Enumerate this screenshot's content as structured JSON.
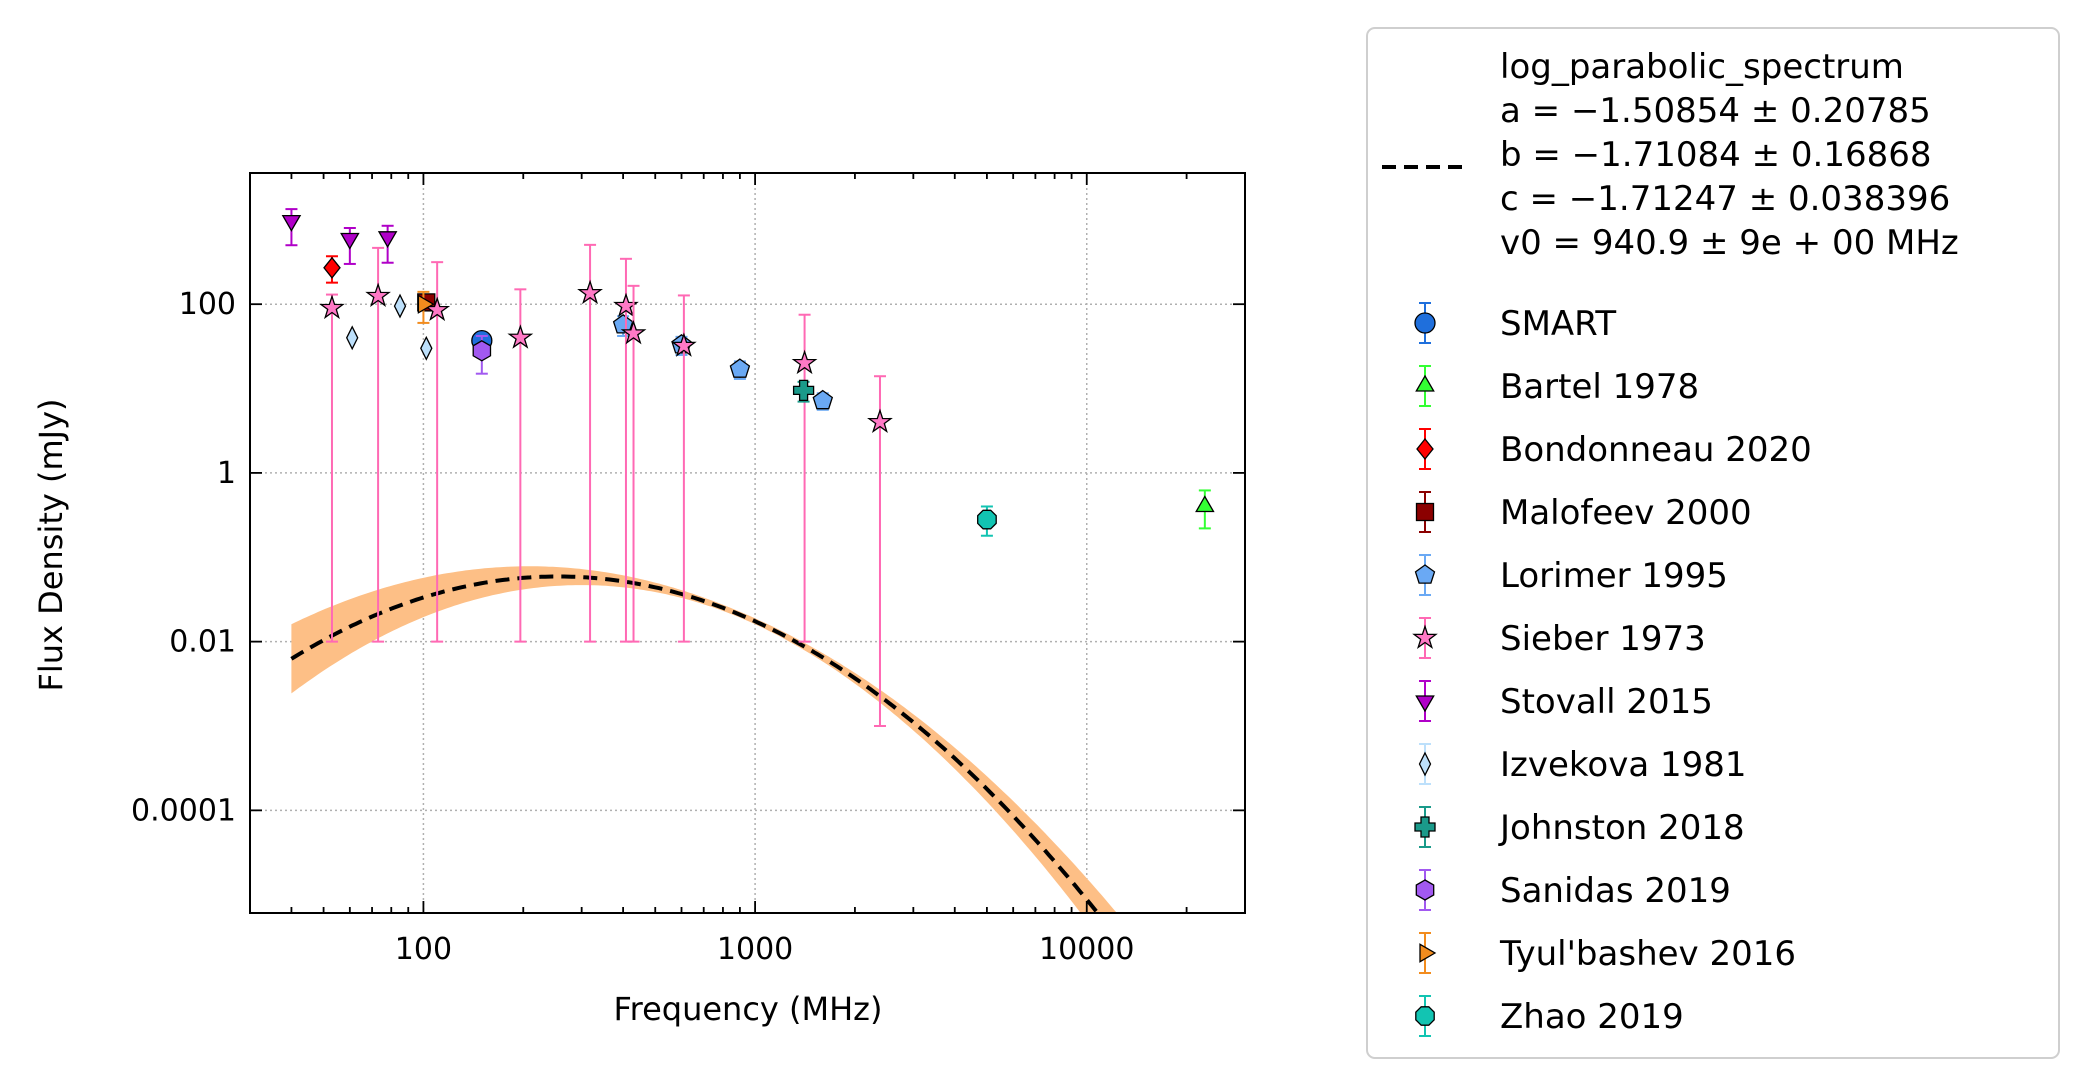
{
  "chart_data": {
    "type": "scatter",
    "xlabel": "Frequency (MHz)",
    "ylabel": "Flux Density (mJy)",
    "x_scale": "log",
    "y_scale": "log",
    "xlim": [
      30,
      30000
    ],
    "ylim": [
      6.07e-06,
      3590
    ],
    "x_ticks": [
      100,
      1000,
      10000
    ],
    "x_tick_labels": [
      "100",
      "1000",
      "10000"
    ],
    "y_ticks": [
      0.0001,
      0.01,
      1,
      100
    ],
    "y_tick_labels": [
      "0.0001",
      "0.01",
      "1",
      "100"
    ],
    "grid": true,
    "legend_position": "outside-right",
    "fit": {
      "name": "log_parabolic_spectrum",
      "lines": [
        "log_parabolic_spectrum",
        "a = −1.50854 ± 0.20785",
        "b = −1.71084 ± 0.16868",
        "c = −1.71247 ± 0.038396",
        "v0 = 940.9 ± 9e + 00 MHz"
      ],
      "a": -1.50854,
      "b": -1.71084,
      "c": -1.71247,
      "v0": 940.9,
      "x_range": [
        40,
        22000
      ],
      "band_color": "#fdbf86",
      "line_color": "#000000"
    },
    "series": [
      {
        "name": "SMART",
        "marker": "circle",
        "color": "#1f6fdc",
        "ecolor": "#1f6fdc",
        "points": [
          {
            "x": 150,
            "y": 37,
            "yerr": [
              8,
              8
            ]
          }
        ]
      },
      {
        "name": "Bartel 1978",
        "marker": "triangle-up",
        "color": "#33ff33",
        "ecolor": "#33ff33",
        "points": [
          {
            "x": 22700,
            "y": 0.4,
            "yerr": [
              0.18,
              0.22
            ]
          }
        ]
      },
      {
        "name": "Bondonneau 2020",
        "marker": "diamond",
        "color": "#ff0000",
        "ecolor": "#ff0000",
        "points": [
          {
            "x": 53,
            "y": 270,
            "yerr": [
              90,
              100
            ]
          }
        ]
      },
      {
        "name": "Malofeev 2000",
        "marker": "square",
        "color": "#8b0000",
        "ecolor": "#8b0000",
        "points": [
          {
            "x": 102,
            "y": 105,
            "yerr": [
              15,
              15
            ]
          }
        ]
      },
      {
        "name": "Lorimer 1995",
        "marker": "pentagon",
        "color": "#6aa9f4",
        "ecolor": "#6aa9f4",
        "points": [
          {
            "x": 400,
            "y": 57,
            "yerr": [
              15,
              15
            ]
          },
          {
            "x": 600,
            "y": 33,
            "yerr": [
              8,
              8
            ]
          },
          {
            "x": 900,
            "y": 17,
            "yerr": [
              4,
              4
            ]
          },
          {
            "x": 1600,
            "y": 7.2,
            "yerr": [
              1.6,
              1.6
            ]
          }
        ]
      },
      {
        "name": "Sieber 1973",
        "marker": "star",
        "color": "#ff79c6",
        "ecolor": "#ff69b4",
        "points": [
          {
            "x": 53,
            "y": 90,
            "yerr": [
              89.99,
              40
            ]
          },
          {
            "x": 73,
            "y": 125,
            "yerr": [
              124.99,
              340
            ]
          },
          {
            "x": 110,
            "y": 85,
            "yerr": [
              84.99,
              230
            ]
          },
          {
            "x": 196,
            "y": 40,
            "yerr": [
              39.99,
              110
            ]
          },
          {
            "x": 318,
            "y": 135,
            "yerr": [
              134.99,
              370
            ]
          },
          {
            "x": 408,
            "y": 95,
            "yerr": [
              94.99,
              250
            ]
          },
          {
            "x": 430,
            "y": 45,
            "yerr": [
              44.99,
              120
            ]
          },
          {
            "x": 610,
            "y": 32,
            "yerr": [
              31.99,
              95
            ]
          },
          {
            "x": 1410,
            "y": 20,
            "yerr": [
              19.99,
              55
            ]
          },
          {
            "x": 2380,
            "y": 4,
            "yerr": [
              3.999,
              10
            ]
          }
        ]
      },
      {
        "name": "Stovall 2015",
        "marker": "triangle-down",
        "color": "#b000c8",
        "ecolor": "#b000c8",
        "points": [
          {
            "x": 40,
            "y": 980,
            "yerr": [
              480,
              360
            ]
          },
          {
            "x": 60,
            "y": 600,
            "yerr": [
              300,
              200
            ]
          },
          {
            "x": 78,
            "y": 630,
            "yerr": [
              320,
              220
            ]
          }
        ]
      },
      {
        "name": "Izvekova 1981",
        "marker": "thin-diamond",
        "color": "#bde0fb",
        "ecolor": "#bde0fb",
        "points": [
          {
            "x": 61,
            "y": 40,
            "yerr": [
              0,
              0
            ]
          },
          {
            "x": 85,
            "y": 95,
            "yerr": [
              0,
              0
            ]
          },
          {
            "x": 102,
            "y": 30,
            "yerr": [
              0,
              0
            ]
          }
        ]
      },
      {
        "name": "Johnston 2018",
        "marker": "plus",
        "color": "#1a9a8a",
        "ecolor": "#1a9a8a",
        "points": [
          {
            "x": 1400,
            "y": 9.5,
            "yerr": [
              2.5,
              2.5
            ]
          }
        ]
      },
      {
        "name": "Sanidas 2019",
        "marker": "hexagon",
        "color": "#a259f0",
        "ecolor": "#a259f0",
        "points": [
          {
            "x": 150,
            "y": 28,
            "yerr": [
              13,
              14
            ]
          }
        ]
      },
      {
        "name": "Tyul'bashev 2016",
        "marker": "triangle-right",
        "color": "#f28c1e",
        "ecolor": "#f28c1e",
        "points": [
          {
            "x": 100,
            "y": 100,
            "yerr": [
              40,
              40
            ]
          }
        ]
      },
      {
        "name": "Zhao 2019",
        "marker": "octagon",
        "color": "#12c4b2",
        "ecolor": "#12c4b2",
        "points": [
          {
            "x": 5000,
            "y": 0.28,
            "yerr": [
              0.1,
              0.12
            ]
          }
        ]
      }
    ]
  }
}
